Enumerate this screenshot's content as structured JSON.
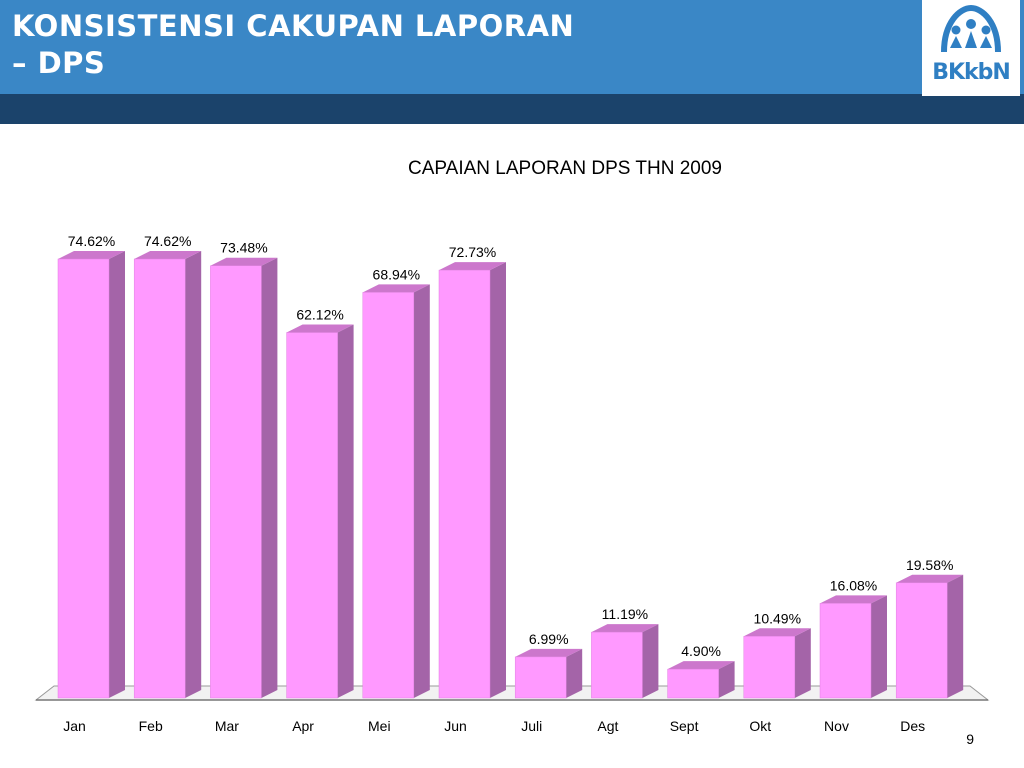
{
  "slide": {
    "title_line1": "KONSISTENSI CAKUPAN LAPORAN",
    "title_line2": "– DPS",
    "page_number": "9",
    "logo_text": "BKkbN"
  },
  "colors": {
    "header": "#3a87c6",
    "header_strip": "#1b436b",
    "bar_front": "#ff99ff",
    "bar_side": "#a464a8",
    "bar_top": "#cc77cc"
  },
  "chart_data": {
    "type": "bar",
    "title": "CAPAIAN LAPORAN DPS THN 2009",
    "categories": [
      "Jan",
      "Feb",
      "Mar",
      "Apr",
      "Mei",
      "Jun",
      "Juli",
      "Agt",
      "Sept",
      "Okt",
      "Nov",
      "Des"
    ],
    "values": [
      74.62,
      74.62,
      73.48,
      62.12,
      68.94,
      72.73,
      6.99,
      11.19,
      4.9,
      10.49,
      16.08,
      19.58
    ],
    "labels": [
      "74.62%",
      "74.62%",
      "73.48%",
      "62.12%",
      "68.94%",
      "72.73%",
      "6.99%",
      "11.19%",
      "4.90%",
      "10.49%",
      "16.08%",
      "19.58%"
    ],
    "ylim": [
      0,
      80
    ],
    "grid": false,
    "legend": "none",
    "style": "3d"
  }
}
